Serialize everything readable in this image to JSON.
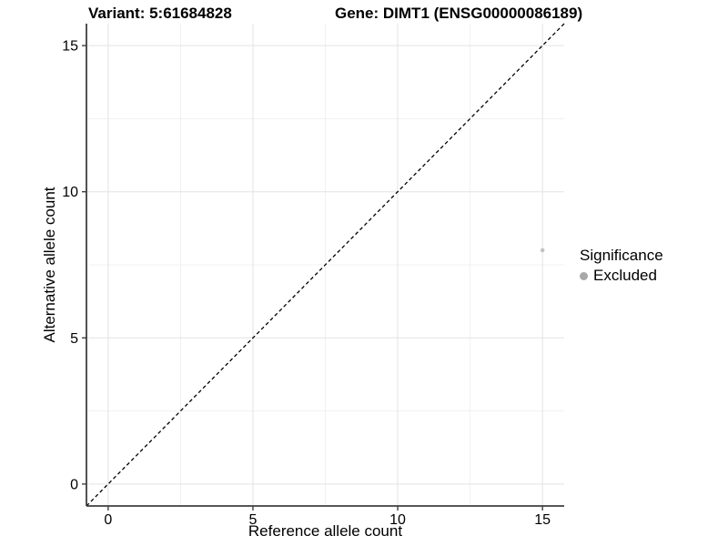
{
  "chart_data": {
    "type": "scatter",
    "titles": {
      "variant": "Variant: 5:61684828",
      "gene": "Gene: DIMT1 (ENSG00000086189)"
    },
    "xlabel": "Reference allele count",
    "ylabel": "Alternative allele count",
    "xlim": [
      -0.75,
      15.75
    ],
    "ylim": [
      -0.75,
      15.75
    ],
    "xticks": [
      0,
      5,
      10,
      15
    ],
    "yticks": [
      0,
      5,
      10,
      15
    ],
    "xtick_labels": [
      "0",
      "5",
      "10",
      "15"
    ],
    "ytick_labels": [
      "0",
      "5",
      "10",
      "15"
    ],
    "minor_xticks": [
      2.5,
      7.5,
      12.5
    ],
    "minor_yticks": [
      2.5,
      7.5,
      12.5
    ],
    "grid": true,
    "points": [
      {
        "x": 15,
        "y": 8,
        "series": "Excluded"
      }
    ],
    "reference_line": {
      "type": "identity",
      "slope": 1,
      "intercept": 0,
      "style": "dashed",
      "color": "#000000"
    },
    "legend": {
      "position": "right",
      "title": "Significance",
      "items": [
        {
          "label": "Excluded",
          "color": "#a8a8a8"
        }
      ]
    },
    "colors": {
      "point_excluded": "#c3c3c3",
      "grid_major": "#e3e3e3",
      "grid_minor": "#f1f1f1",
      "axis_line": "#3f3f3f",
      "tick_label": "#000000"
    }
  }
}
